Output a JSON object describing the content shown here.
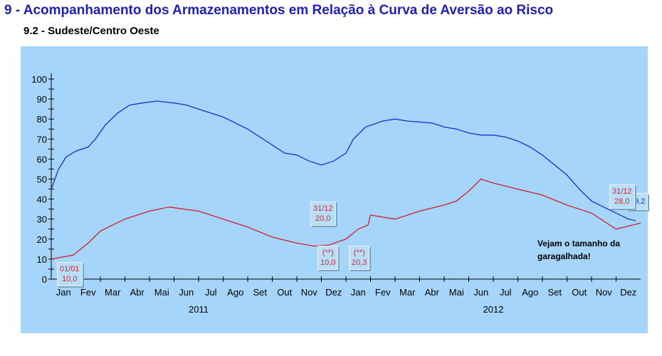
{
  "title": "9 - Acompanhamento dos Armazenamentos em Relação à Curva de Aversão ao Risco",
  "subtitle": "9.2 - Sudeste/Centro Oeste",
  "note": "Vejam o tamanho da garagalhada!",
  "chart_data": {
    "type": "line",
    "ylim": [
      0,
      100
    ],
    "yticks": [
      0,
      10,
      20,
      30,
      40,
      50,
      60,
      70,
      80,
      90,
      100
    ],
    "xlim": [
      0,
      24
    ],
    "xunit": "months since Jan 2011",
    "month_labels": [
      "Jan",
      "Fev",
      "Mar",
      "Abr",
      "Mai",
      "Jun",
      "Jul",
      "Ago",
      "Set",
      "Out",
      "Nov",
      "Dez",
      "Jan",
      "Fev",
      "Mar",
      "Abr",
      "Mai",
      "Jun",
      "Jul",
      "Ago",
      "Set",
      "Out",
      "Nov",
      "Dez"
    ],
    "year_labels": [
      "2011",
      "2012"
    ],
    "series": [
      {
        "name": "Armazenamento",
        "color": "#1a2fd0",
        "x": [
          0,
          0.3,
          0.6,
          1,
          1.5,
          1.8,
          2.2,
          2.7,
          3.2,
          3.7,
          4.3,
          5,
          5.5,
          6,
          7,
          8,
          9,
          9.5,
          10,
          10.5,
          11,
          11.5,
          12,
          12.3,
          12.8,
          13.5,
          14,
          14.5,
          15,
          15.5,
          16,
          16.5,
          17,
          17.5,
          18,
          18.5,
          19,
          19.5,
          20,
          21,
          21.5,
          22,
          22.5,
          23,
          23.5,
          23.8
        ],
        "values": [
          45,
          55,
          61,
          64,
          66,
          70,
          77,
          83,
          87,
          88,
          89,
          88,
          87,
          85,
          81,
          75,
          67,
          63,
          62,
          59,
          57,
          59,
          63,
          70,
          76,
          79,
          80,
          79,
          78.5,
          78,
          76,
          75,
          73,
          72,
          72,
          71,
          69,
          66,
          62,
          52,
          45,
          39,
          36,
          33,
          30,
          29.2
        ]
      },
      {
        "name": "Curva de Aversão ao Risco",
        "color": "#d21e2a",
        "x": [
          0,
          0.9,
          1.5,
          2,
          2.5,
          3,
          4,
          4.8,
          6,
          7,
          8,
          9,
          10,
          10.7,
          11.3,
          12,
          12.5,
          12.9,
          13,
          13.5,
          14,
          14.5,
          15,
          16,
          16.5,
          17,
          17.5,
          18,
          19,
          20,
          21,
          22,
          23,
          24
        ],
        "values": [
          10,
          12,
          18,
          24,
          27,
          30,
          34,
          36,
          34,
          30,
          26,
          21,
          18,
          16.5,
          17,
          20,
          25,
          27,
          32,
          31,
          30,
          32,
          34,
          37,
          39,
          44,
          50,
          48,
          45,
          42,
          37,
          33,
          25,
          28
        ]
      }
    ],
    "annotations": [
      {
        "date": "01/01",
        "value": "10,0"
      },
      {
        "date": "31/12",
        "value": "20,0"
      },
      {
        "date": "(**)",
        "value": "10,0"
      },
      {
        "date": "(**)",
        "value": "20,3"
      },
      {
        "date": "31/12",
        "value": "28,0"
      },
      {
        "date": "",
        "value": "29,2"
      }
    ]
  }
}
